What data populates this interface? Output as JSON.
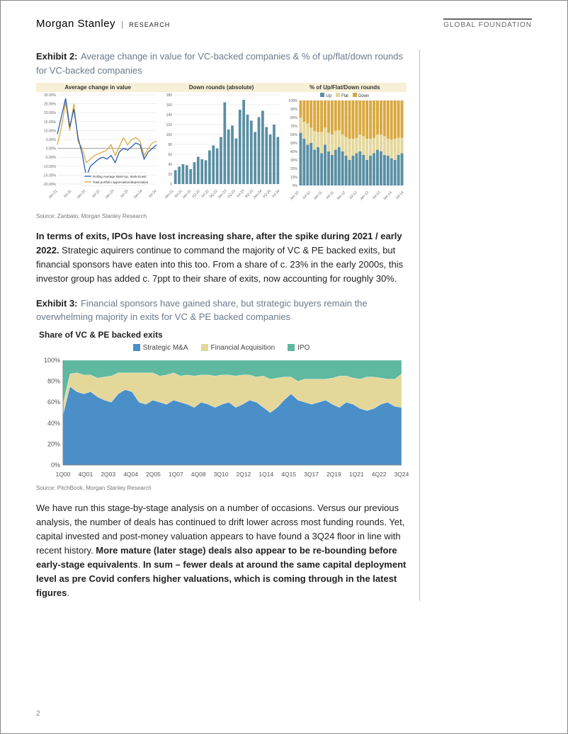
{
  "header": {
    "brand": "Morgan Stanley",
    "sub": "RESEARCH",
    "right": "GLOBAL FOUNDATION"
  },
  "exhibit2": {
    "label": "Exhibit 2:",
    "caption": "Average change in value for VC-backed companies & % of up/flat/down rounds for VC-backed companies",
    "source": "Source: Zanbato, Morgan Stanley Research",
    "panelA": {
      "title": "Average change in value",
      "ymin": -20,
      "ymax": 30,
      "ytick": 5,
      "yticks_labels": [
        "-20.00%",
        "-15.00%",
        "-10.00%",
        "-5.00%",
        "0.00%",
        "5.00%",
        "10.00%",
        "15.00%",
        "20.00%",
        "25.00%",
        "30.00%"
      ],
      "x_labels": [
        "Jan-21",
        "Jul-21",
        "Jan-22",
        "Jul-22",
        "Jan-23",
        "Jul-23",
        "Jan-24",
        "Jul-24"
      ],
      "series1_name": "Rolling Average Mark-Up, Mark-Down",
      "series1_color": "#2a5caa",
      "series1": [
        8,
        18,
        28,
        12,
        22,
        6,
        -3,
        -16,
        -10,
        -8,
        -6,
        -5,
        -6,
        -4,
        -8,
        -2,
        0,
        -1,
        1,
        3,
        2,
        -6,
        -2,
        0,
        2
      ],
      "series2_name": "Total portfolio appreciation/depreciation",
      "series2_color": "#d9a93f",
      "series2": [
        2,
        12,
        26,
        10,
        25,
        4,
        0,
        -8,
        -6,
        -4,
        -3,
        -2,
        -1,
        2,
        -4,
        1,
        6,
        2,
        5,
        6,
        4,
        -4,
        0,
        3,
        4
      ]
    },
    "panelB": {
      "title": "Down rounds (absolute)",
      "ymin": 0,
      "ymax": 180,
      "ytick": 20,
      "x_labels": [
        "Jan-21",
        "Jul-21",
        "Jan-22",
        "1Q-22",
        "Jul-22",
        "3Q-22",
        "Jan-23",
        "1Q-23",
        "Jul-23",
        "3Q-23",
        "Jan-24",
        "1Q-24",
        "Jul-24"
      ],
      "bar_color": "#5a8fa3",
      "values": [
        28,
        35,
        40,
        38,
        30,
        44,
        55,
        50,
        48,
        68,
        78,
        72,
        95,
        165,
        110,
        118,
        92,
        150,
        170,
        140,
        128,
        105,
        135,
        148,
        115,
        100,
        120,
        95
      ]
    },
    "panelC": {
      "title": "% of Up/Flat/Down rounds",
      "ymin": 0,
      "ymax": 100,
      "ytick": 10,
      "legend": [
        "Up",
        "Flat",
        "Down"
      ],
      "colors": {
        "up": "#5a8fa3",
        "flat": "#e4d79a",
        "down": "#d9a93f"
      },
      "x_labels": [
        "Jan-10",
        "Jul-10",
        "Jan-11",
        "Jul-11",
        "Jan-12",
        "Jul-12",
        "Jan-13",
        "Jul-13",
        "Jan-14",
        "Jul-14"
      ],
      "up": [
        62,
        55,
        48,
        50,
        42,
        45,
        38,
        48,
        40,
        36,
        42,
        45,
        40,
        35,
        30,
        35,
        38,
        40,
        36,
        30,
        35,
        38,
        42,
        40,
        36,
        35,
        32,
        30,
        36,
        38
      ],
      "flat": [
        18,
        20,
        25,
        18,
        22,
        18,
        25,
        20,
        22,
        24,
        22,
        20,
        20,
        22,
        25,
        20,
        18,
        20,
        22,
        25,
        20,
        18,
        18,
        20,
        22,
        20,
        22,
        25,
        20,
        18
      ],
      "down": [
        20,
        25,
        27,
        32,
        36,
        37,
        37,
        32,
        38,
        40,
        36,
        35,
        40,
        43,
        45,
        45,
        44,
        40,
        42,
        45,
        45,
        44,
        40,
        40,
        42,
        45,
        46,
        45,
        44,
        44
      ]
    }
  },
  "para1_a": "In terms of exits, IPOs have lost increasing share, after the spike during 2021 / early 2022.",
  "para1_b": " Strategic aquirers continue to command the majority of VC & PE backed exits, but financial sponsors have eaten into this too. From a share of c. 23% in the early 2000s, this investor group has added c. 7ppt to their share of exits, now accounting for roughly 30%.",
  "exhibit3": {
    "label": "Exhibit 3:",
    "caption": "Financial sponsors have gained share, but strategic buyers remain the overwhelming majority in exits for VC & PE backed companies",
    "chart_title": "Share of VC & PE backed exits",
    "source": "Source: PitchBook, Morgan Stanley Research",
    "legend": {
      "strategic": "Strategic M&A",
      "fin": "Financial Acquisition",
      "ipo": "IPO"
    },
    "colors": {
      "strategic": "#4a8fc7",
      "fin": "#e4d79a",
      "ipo": "#5fb8a0"
    },
    "ymin": 0,
    "ymax": 100,
    "ytick": 20,
    "x_labels": [
      "1Q00",
      "4Q01",
      "2Q03",
      "4Q04",
      "2Q05",
      "1Q07",
      "4Q08",
      "3Q10",
      "2Q12",
      "1Q14",
      "4Q15",
      "3Q17",
      "2Q19",
      "1Q21",
      "4Q22",
      "3Q24"
    ],
    "strategic": [
      48,
      75,
      70,
      68,
      70,
      65,
      62,
      60,
      68,
      72,
      70,
      60,
      58,
      62,
      60,
      58,
      62,
      60,
      58,
      55,
      60,
      58,
      55,
      58,
      60,
      55,
      58,
      62,
      60,
      55,
      50,
      55,
      62,
      68,
      62,
      60,
      58,
      60,
      62,
      58,
      55,
      60,
      58,
      54,
      52,
      54,
      58,
      60,
      56,
      55
    ],
    "fin": [
      10,
      12,
      18,
      18,
      16,
      18,
      22,
      25,
      20,
      16,
      18,
      28,
      30,
      26,
      25,
      28,
      26,
      25,
      28,
      30,
      26,
      28,
      30,
      28,
      26,
      30,
      28,
      24,
      24,
      30,
      32,
      28,
      22,
      16,
      18,
      22,
      24,
      22,
      20,
      25,
      30,
      25,
      25,
      28,
      32,
      30,
      25,
      22,
      26,
      32
    ],
    "ipo": [
      42,
      13,
      12,
      14,
      14,
      17,
      16,
      15,
      12,
      12,
      12,
      12,
      12,
      12,
      15,
      14,
      12,
      15,
      14,
      15,
      14,
      14,
      15,
      14,
      14,
      15,
      14,
      14,
      16,
      15,
      18,
      17,
      16,
      16,
      20,
      18,
      18,
      18,
      18,
      17,
      15,
      15,
      17,
      18,
      16,
      16,
      17,
      18,
      18,
      13
    ]
  },
  "para2_a": "We have run this stage-by-stage analysis on a number of occasions. Versus our previous analysis, the number of deals has continued to drift lower across most funding rounds. Yet, capital invested and post-money valuation appears to have found a 3Q24 floor in line with recent history. ",
  "para2_b": "More mature (later stage) deals also appear to be re-bounding before early-stage equivalents",
  "para2_c": ". ",
  "para2_d": "In sum – fewer deals at around the same capital deployment level as pre Covid confers higher valuations, which is coming through in the latest figures",
  "para2_e": ".",
  "page_number": "2"
}
